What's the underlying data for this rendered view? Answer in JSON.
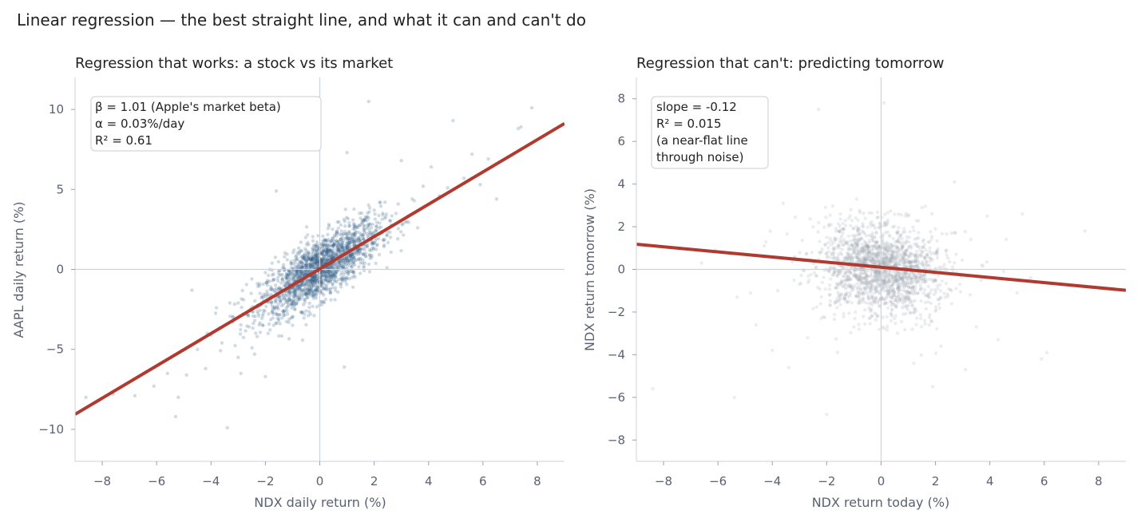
{
  "figure": {
    "title": "Linear regression — the best straight line, and what it can and can't do"
  },
  "chart_data": [
    {
      "type": "scatter",
      "title": "Regression that works: a stock vs its market",
      "xlabel": "NDX daily return (%)",
      "ylabel": "AAPL daily return (%)",
      "xlim": [
        -9,
        9
      ],
      "ylim": [
        -12,
        12
      ],
      "xticks": [
        -8,
        -6,
        -4,
        -2,
        0,
        2,
        4,
        6,
        8
      ],
      "yticks": [
        -10,
        -5,
        0,
        5,
        10
      ],
      "x_tick_labels": [
        "−8",
        "−6",
        "−4",
        "−2",
        "0",
        "2",
        "4",
        "6",
        "8"
      ],
      "y_tick_labels": [
        "−10",
        "−5",
        "0",
        "5",
        "10"
      ],
      "grid": false,
      "zero_lines": true,
      "point_color": "#2c5a86",
      "line_color": "#b03a30",
      "fit_line": {
        "slope": 1.01,
        "intercept": 0.03
      },
      "annotation": [
        "β = 1.01  (Apple's market beta)",
        "α = 0.03%/day",
        "R² = 0.61"
      ],
      "points": [
        [
          -8.6,
          -8.0
        ],
        [
          -7.6,
          -7.8
        ],
        [
          -6.8,
          -7.9
        ],
        [
          -6.1,
          -7.3
        ],
        [
          -5.6,
          -6.5
        ],
        [
          -5.3,
          -9.2
        ],
        [
          -5.2,
          -8.0
        ],
        [
          -4.9,
          -6.6
        ],
        [
          -4.7,
          -1.3
        ],
        [
          -4.5,
          -5.0
        ],
        [
          -4.2,
          -6.2
        ],
        [
          -4.0,
          -4.1
        ],
        [
          -3.8,
          -2.4
        ],
        [
          -3.6,
          -4.6
        ],
        [
          -3.4,
          -9.9
        ],
        [
          -3.2,
          -3.3
        ],
        [
          -3.0,
          -2.1
        ],
        [
          -3.0,
          -5.5
        ],
        [
          -2.9,
          -6.5
        ],
        [
          -2.8,
          -1.9
        ],
        [
          -2.6,
          -3.6
        ],
        [
          -2.5,
          -0.6
        ],
        [
          -2.4,
          -5.3
        ],
        [
          -2.3,
          -4.2
        ],
        [
          -2.2,
          -1.5
        ],
        [
          -2.1,
          -2.9
        ],
        [
          -2.0,
          -6.7
        ],
        [
          -2.0,
          -0.2
        ],
        [
          -1.9,
          -4.0
        ],
        [
          -1.8,
          -1.7
        ],
        [
          -1.7,
          -2.8
        ],
        [
          -1.6,
          4.9
        ],
        [
          -1.5,
          -3.1
        ],
        [
          -1.4,
          -1.2
        ],
        [
          -1.3,
          -0.8
        ],
        [
          -1.2,
          -2.6
        ],
        [
          -1.1,
          -1.9
        ],
        [
          -1.0,
          -3.5
        ],
        [
          -0.9,
          0.4
        ],
        [
          -0.8,
          -1.4
        ],
        [
          -0.7,
          -0.2
        ],
        [
          -0.6,
          -2.2
        ],
        [
          -0.5,
          -0.9
        ],
        [
          -0.4,
          0.8
        ],
        [
          -0.3,
          -1.1
        ],
        [
          -0.2,
          -0.5
        ],
        [
          -0.1,
          0.6
        ],
        [
          0.0,
          -0.2
        ],
        [
          0.1,
          0.4
        ],
        [
          0.2,
          -0.6
        ],
        [
          0.3,
          1.2
        ],
        [
          0.4,
          0.3
        ],
        [
          0.5,
          -0.4
        ],
        [
          0.6,
          1.5
        ],
        [
          0.7,
          0.6
        ],
        [
          0.8,
          2.4
        ],
        [
          0.9,
          -6.1
        ],
        [
          1.0,
          7.3
        ],
        [
          1.1,
          1.8
        ],
        [
          1.2,
          0.4
        ],
        [
          1.3,
          2.7
        ],
        [
          1.4,
          1.1
        ],
        [
          1.5,
          3.2
        ],
        [
          1.6,
          1.9
        ],
        [
          1.7,
          0.8
        ],
        [
          1.8,
          10.5
        ],
        [
          1.9,
          2.6
        ],
        [
          2.0,
          3.7
        ],
        [
          2.1,
          1.5
        ],
        [
          2.2,
          2.9
        ],
        [
          2.4,
          4.2
        ],
        [
          2.6,
          2.0
        ],
        [
          2.8,
          3.5
        ],
        [
          3.0,
          6.8
        ],
        [
          3.2,
          3.0
        ],
        [
          3.4,
          4.4
        ],
        [
          3.6,
          2.6
        ],
        [
          3.8,
          5.2
        ],
        [
          4.1,
          6.4
        ],
        [
          4.4,
          4.6
        ],
        [
          4.7,
          5.1
        ],
        [
          4.9,
          9.3
        ],
        [
          5.3,
          5.7
        ],
        [
          5.6,
          7.2
        ],
        [
          5.9,
          5.3
        ],
        [
          6.2,
          6.9
        ],
        [
          6.5,
          4.4
        ],
        [
          7.3,
          8.8
        ],
        [
          7.4,
          8.9
        ],
        [
          7.8,
          10.1
        ]
      ]
    },
    {
      "type": "scatter",
      "title": "Regression that can't: predicting tomorrow",
      "xlabel": "NDX return today (%)",
      "ylabel": "NDX return tomorrow (%)",
      "xlim": [
        -9,
        9
      ],
      "ylim": [
        -9,
        9
      ],
      "xticks": [
        -8,
        -6,
        -4,
        -2,
        0,
        2,
        4,
        6,
        8
      ],
      "yticks": [
        -8,
        -6,
        -4,
        -2,
        0,
        2,
        4,
        6,
        8
      ],
      "x_tick_labels": [
        "−8",
        "−6",
        "−4",
        "−2",
        "0",
        "2",
        "4",
        "6",
        "8"
      ],
      "y_tick_labels": [
        "−8",
        "−6",
        "−4",
        "−2",
        "0",
        "2",
        "4",
        "6",
        "8"
      ],
      "grid": false,
      "zero_lines": true,
      "point_color": "#9aa3ad",
      "line_color": "#b03a30",
      "fit_line": {
        "slope": -0.12,
        "intercept": 0.1
      },
      "annotation": [
        "slope = -0.12",
        "R² = 0.015",
        "(a near-flat line",
        "through noise)"
      ],
      "points": [
        [
          -8.4,
          -5.6
        ],
        [
          -6.6,
          0.3
        ],
        [
          -6.1,
          0.9
        ],
        [
          -5.4,
          -6.0
        ],
        [
          -5.3,
          -1.3
        ],
        [
          -4.8,
          -1.1
        ],
        [
          -4.6,
          -2.6
        ],
        [
          -4.3,
          1.1
        ],
        [
          -4.0,
          -3.8
        ],
        [
          -3.8,
          -1.0
        ],
        [
          -3.6,
          3.1
        ],
        [
          -3.4,
          -4.6
        ],
        [
          -3.2,
          -0.5
        ],
        [
          -3.0,
          -0.7
        ],
        [
          -2.9,
          0.4
        ],
        [
          -2.7,
          -3.2
        ],
        [
          -2.5,
          2.0
        ],
        [
          -2.4,
          -0.3
        ],
        [
          -2.3,
          7.5
        ],
        [
          -2.2,
          -2.3
        ],
        [
          -2.0,
          1.5
        ],
        [
          -2.0,
          -6.8
        ],
        [
          -1.9,
          -1.2
        ],
        [
          -1.8,
          0.7
        ],
        [
          -1.6,
          -3.9
        ],
        [
          -1.5,
          2.6
        ],
        [
          -1.4,
          -0.8
        ],
        [
          -1.3,
          1.2
        ],
        [
          -1.2,
          -1.5
        ],
        [
          -1.1,
          0.3
        ],
        [
          -1.0,
          -2.7
        ],
        [
          -0.9,
          3.3
        ],
        [
          -0.8,
          -0.4
        ],
        [
          -0.7,
          1.8
        ],
        [
          -0.6,
          -1.9
        ],
        [
          -0.5,
          0.6
        ],
        [
          -0.4,
          -0.9
        ],
        [
          -0.3,
          2.1
        ],
        [
          -0.2,
          -0.2
        ],
        [
          -0.1,
          1.0
        ],
        [
          0.0,
          -1.4
        ],
        [
          0.1,
          0.5
        ],
        [
          0.1,
          7.8
        ],
        [
          0.2,
          -0.6
        ],
        [
          0.3,
          1.6
        ],
        [
          0.4,
          -2.2
        ],
        [
          0.5,
          0.2
        ],
        [
          0.6,
          -3.0
        ],
        [
          0.7,
          0.9
        ],
        [
          0.8,
          -0.8
        ],
        [
          0.9,
          2.5
        ],
        [
          1.0,
          -1.7
        ],
        [
          1.1,
          0.3
        ],
        [
          1.2,
          -4.4
        ],
        [
          1.3,
          1.1
        ],
        [
          1.4,
          -0.5
        ],
        [
          1.5,
          2.9
        ],
        [
          1.6,
          -2.4
        ],
        [
          1.7,
          0.7
        ],
        [
          1.8,
          -1.1
        ],
        [
          1.9,
          -5.5
        ],
        [
          2.0,
          1.9
        ],
        [
          2.1,
          -0.3
        ],
        [
          2.2,
          -3.6
        ],
        [
          2.4,
          0.9
        ],
        [
          2.6,
          -1.6
        ],
        [
          2.7,
          4.1
        ],
        [
          2.9,
          -0.7
        ],
        [
          3.1,
          -4.7
        ],
        [
          3.3,
          1.4
        ],
        [
          3.5,
          -2.7
        ],
        [
          3.7,
          0.2
        ],
        [
          3.9,
          2.5
        ],
        [
          4.3,
          -3.3
        ],
        [
          4.5,
          -0.1
        ],
        [
          4.6,
          1.4
        ],
        [
          5.0,
          -1.1
        ],
        [
          5.2,
          2.6
        ],
        [
          5.5,
          -0.4
        ],
        [
          5.9,
          -4.2
        ],
        [
          6.1,
          -3.9
        ],
        [
          7.5,
          1.8
        ]
      ]
    }
  ]
}
